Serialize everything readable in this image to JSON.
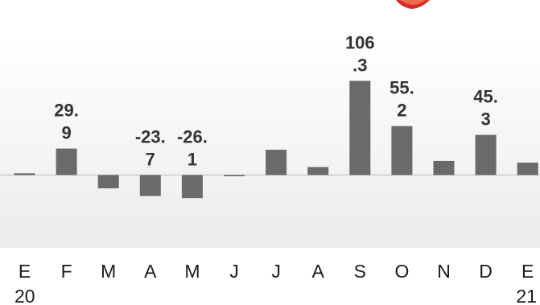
{
  "chart_data": {
    "type": "bar",
    "categories": [
      "E",
      "F",
      "M",
      "A",
      "M",
      "J",
      "J",
      "A",
      "S",
      "O",
      "N",
      "D",
      "E"
    ],
    "year_labels": [
      {
        "index": 0,
        "text": "20"
      },
      {
        "index": 12,
        "text": "21"
      }
    ],
    "values": [
      2,
      29.9,
      -15,
      -23.7,
      -26.1,
      -1,
      28.5,
      9,
      106.3,
      55.2,
      16,
      45.3,
      14
    ],
    "data_labels": [
      {
        "index": 1,
        "lines": [
          "29.",
          "9"
        ]
      },
      {
        "index": 3,
        "lines": [
          "-23.",
          "7"
        ]
      },
      {
        "index": 4,
        "lines": [
          "-26.",
          "1"
        ]
      },
      {
        "index": 8,
        "lines": [
          "106",
          ".3"
        ]
      },
      {
        "index": 9,
        "lines": [
          "55.",
          "2"
        ]
      },
      {
        "index": 11,
        "lines": [
          "45.",
          "3"
        ]
      }
    ],
    "baseline": 0,
    "ylim": [
      -80,
      140
    ],
    "grid": false,
    "colors": {
      "bar": "#6b6969",
      "baseline": "#bdbdbd",
      "label": "#333333"
    }
  }
}
